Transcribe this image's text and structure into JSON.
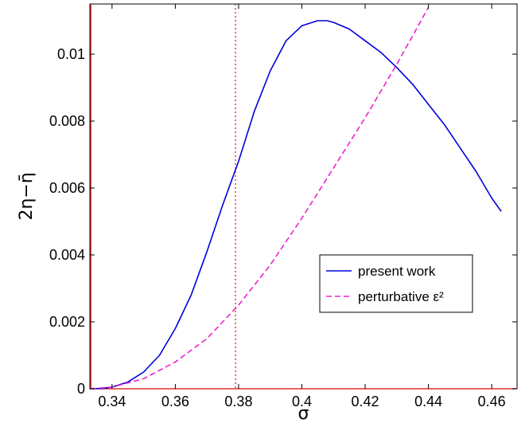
{
  "chart_data": {
    "type": "line",
    "xlabel": "σ",
    "ylabel": "2η−η̄",
    "xlim": [
      0.333,
      0.468
    ],
    "ylim": [
      0,
      0.0115
    ],
    "x_ticks": [
      "0.34",
      "0.36",
      "0.38",
      "0.4",
      "0.42",
      "0.44",
      "0.46"
    ],
    "x_tick_values": [
      0.34,
      0.36,
      0.38,
      0.4,
      0.42,
      0.44,
      0.46
    ],
    "y_ticks": [
      "0",
      "0.002",
      "0.004",
      "0.006",
      "0.008",
      "0.01"
    ],
    "y_tick_values": [
      0,
      0.002,
      0.004,
      0.006,
      0.008,
      0.01
    ],
    "grid": false,
    "legend_position": "bottom-right",
    "reference_lines": [
      {
        "orientation": "vertical",
        "x": 0.3333,
        "style": "solid",
        "color": "#e03030"
      },
      {
        "orientation": "horizontal",
        "y": 0,
        "style": "solid",
        "color": "#e03030"
      },
      {
        "orientation": "vertical",
        "x": 0.379,
        "style": "dotted",
        "color": "#e03030"
      }
    ],
    "series": [
      {
        "name": "present work",
        "color": "#0000dd",
        "style": "solid",
        "x": [
          0.3333,
          0.337,
          0.34,
          0.345,
          0.35,
          0.355,
          0.36,
          0.365,
          0.37,
          0.375,
          0.38,
          0.385,
          0.39,
          0.395,
          0.4,
          0.405,
          0.408,
          0.41,
          0.415,
          0.42,
          0.425,
          0.43,
          0.435,
          0.44,
          0.445,
          0.45,
          0.455,
          0.46,
          0.463
        ],
        "y": [
          0,
          1e-05,
          5e-05,
          0.0002,
          0.0005,
          0.001,
          0.0018,
          0.0028,
          0.0041,
          0.0055,
          0.0068,
          0.0083,
          0.0095,
          0.0104,
          0.01085,
          0.011,
          0.011,
          0.01095,
          0.01075,
          0.0104,
          0.01005,
          0.0096,
          0.0091,
          0.0085,
          0.0079,
          0.0072,
          0.0065,
          0.0057,
          0.0053
        ]
      },
      {
        "name": "perturbative ε²",
        "color": "#ee22cc",
        "style": "dashed",
        "x": [
          0.3333,
          0.34,
          0.35,
          0.36,
          0.37,
          0.38,
          0.39,
          0.4,
          0.41,
          0.42,
          0.43,
          0.44
        ],
        "y": [
          0,
          5e-05,
          0.0003,
          0.0008,
          0.0015,
          0.0025,
          0.0037,
          0.0051,
          0.0066,
          0.0081,
          0.0097,
          0.0114
        ]
      }
    ]
  }
}
